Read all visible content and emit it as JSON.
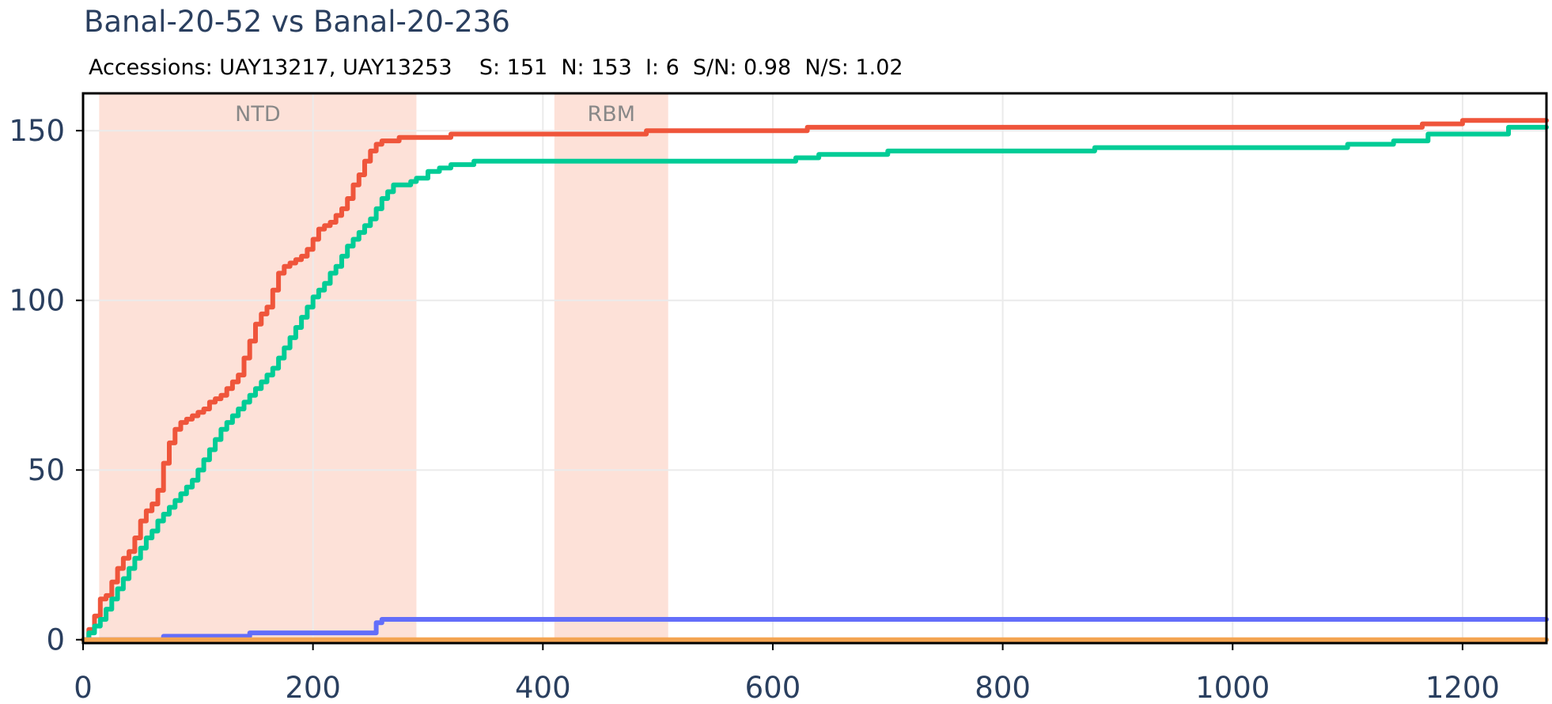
{
  "chart_data": {
    "type": "line",
    "title": "Banal-20-52 vs Banal-20-236",
    "subtitle": "Accessions: UAY13217, UAY13253    S: 151  N: 153  I: 6  S/N: 0.98  N/S: 1.02",
    "xlabel": "",
    "ylabel": "",
    "xlim": [
      0,
      1273
    ],
    "ylim": [
      -1,
      161
    ],
    "xticks": [
      0,
      200,
      400,
      600,
      800,
      1000,
      1200
    ],
    "yticks": [
      0,
      50,
      100,
      150
    ],
    "grid": true,
    "legend": false,
    "regions": [
      {
        "label": "NTD",
        "x0": 14,
        "x1": 290,
        "color": "#fde1d8"
      },
      {
        "label": "RBM",
        "x0": 410,
        "x1": 509,
        "color": "#fde1d8"
      }
    ],
    "series": [
      {
        "color": "#ef553b",
        "x": [
          0,
          5,
          10,
          15,
          20,
          25,
          30,
          35,
          40,
          45,
          50,
          55,
          60,
          65,
          70,
          75,
          80,
          85,
          90,
          95,
          100,
          105,
          110,
          115,
          120,
          125,
          130,
          135,
          140,
          145,
          150,
          155,
          160,
          165,
          170,
          175,
          180,
          185,
          190,
          195,
          200,
          205,
          210,
          215,
          220,
          225,
          230,
          235,
          240,
          245,
          250,
          255,
          260,
          265,
          270,
          275,
          280,
          285,
          290,
          300,
          320,
          340,
          400,
          440,
          490,
          500,
          580,
          630,
          700,
          800,
          900,
          1000,
          1100,
          1165,
          1200,
          1273
        ],
        "y": [
          0,
          3,
          7,
          12,
          13,
          17,
          21,
          24,
          26,
          30,
          35,
          38,
          40,
          44,
          52,
          58,
          62,
          64,
          65,
          66,
          67,
          68,
          70,
          71,
          72,
          74,
          76,
          78,
          83,
          88,
          93,
          96,
          98,
          103,
          108,
          110,
          111,
          112,
          113,
          115,
          118,
          121,
          122,
          123,
          125,
          127,
          130,
          134,
          137,
          141,
          144,
          146,
          147,
          147,
          147,
          148,
          148,
          148,
          148,
          148,
          149,
          149,
          149,
          149,
          150,
          150,
          150,
          151,
          151,
          151,
          151,
          151,
          151,
          152,
          153,
          153
        ]
      },
      {
        "color": "#00cc96",
        "x": [
          0,
          5,
          10,
          15,
          20,
          25,
          30,
          35,
          40,
          45,
          50,
          55,
          60,
          65,
          70,
          75,
          80,
          85,
          90,
          95,
          100,
          105,
          110,
          115,
          120,
          125,
          130,
          135,
          140,
          145,
          150,
          155,
          160,
          165,
          170,
          175,
          180,
          185,
          190,
          195,
          200,
          205,
          210,
          215,
          220,
          225,
          230,
          235,
          240,
          245,
          250,
          255,
          260,
          265,
          270,
          275,
          280,
          285,
          290,
          300,
          310,
          320,
          340,
          400,
          500,
          600,
          620,
          640,
          700,
          800,
          880,
          1000,
          1080,
          1100,
          1140,
          1170,
          1240,
          1273
        ],
        "y": [
          0,
          2,
          4,
          6,
          9,
          12,
          15,
          18,
          21,
          24,
          27,
          30,
          32,
          35,
          37,
          39,
          41,
          43,
          45,
          47,
          50,
          53,
          56,
          59,
          62,
          64,
          66,
          68,
          70,
          72,
          74,
          76,
          78,
          80,
          83,
          86,
          89,
          92,
          95,
          98,
          101,
          103,
          105,
          108,
          110,
          113,
          116,
          118,
          120,
          122,
          124,
          127,
          130,
          132,
          134,
          134,
          134,
          135,
          136,
          138,
          139,
          140,
          141,
          141,
          141,
          141,
          142,
          143,
          144,
          144,
          145,
          145,
          145,
          146,
          147,
          149,
          151,
          151
        ]
      },
      {
        "color": "#636efa",
        "x": [
          0,
          30,
          60,
          70,
          100,
          130,
          145,
          170,
          200,
          230,
          250,
          255,
          260,
          400,
          600,
          800,
          1000,
          1200,
          1273
        ],
        "y": [
          0,
          0,
          0,
          1,
          1,
          1,
          2,
          2,
          2,
          2,
          2,
          5,
          6,
          6,
          6,
          6,
          6,
          6,
          6
        ]
      },
      {
        "color": "#f5a552",
        "x": [
          0,
          1273
        ],
        "y": [
          0,
          0
        ]
      }
    ]
  }
}
